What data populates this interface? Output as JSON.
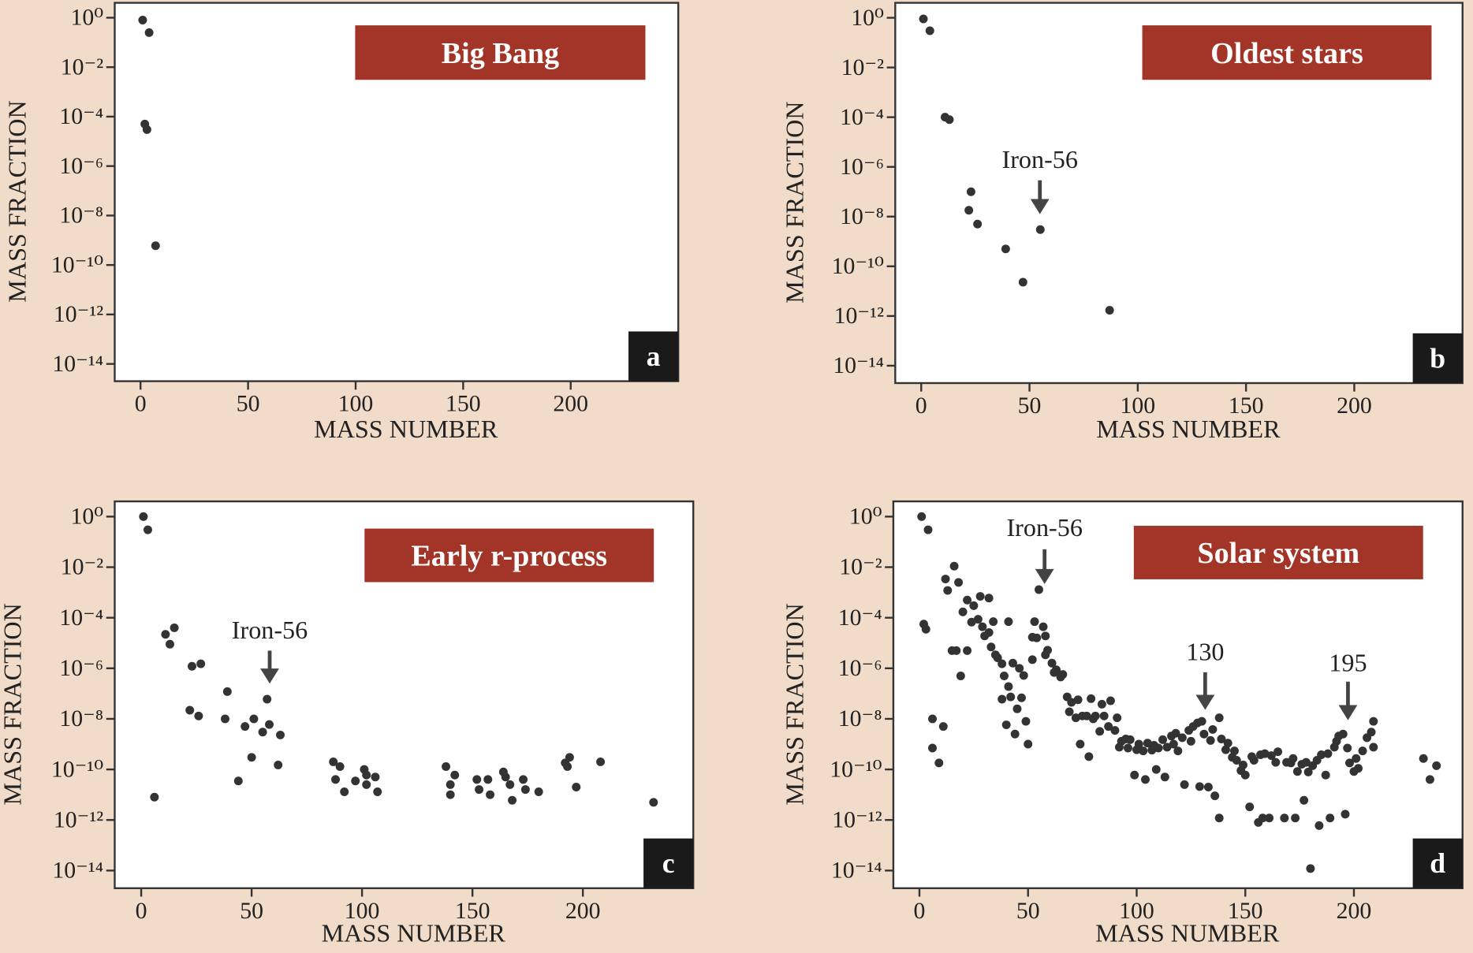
{
  "chart_data": [
    {
      "type": "scatter",
      "title": "Big Bang",
      "panel": "a",
      "x_label": "MASS NUMBER",
      "y_label": "MASS FRACTION",
      "yscale": "log",
      "color": "#333333",
      "xlim": [
        -12,
        250
      ],
      "ylim": [
        2e-15,
        4
      ],
      "xticks": [
        0,
        50,
        100,
        150,
        200
      ],
      "yticks": [
        {
          "value": 1,
          "label": "10⁰"
        },
        {
          "value": 0.01,
          "label": "10⁻²"
        },
        {
          "value": 0.0001,
          "label": "10⁻⁴"
        },
        {
          "value": 1e-06,
          "label": "10⁻⁶"
        },
        {
          "value": 1e-08,
          "label": "10⁻⁸"
        },
        {
          "value": 1e-10,
          "label": "10⁻¹⁰"
        },
        {
          "value": 1e-12,
          "label": "10⁻¹²"
        },
        {
          "value": 1e-14,
          "label": "10⁻¹⁴"
        }
      ],
      "annotations": [],
      "x": [
        1,
        4,
        2,
        3,
        7
      ],
      "values": [
        0.8,
        0.25,
        5e-05,
        3e-05,
        6e-10
      ]
    },
    {
      "type": "scatter",
      "title": "Oldest stars",
      "panel": "b",
      "x_label": "MASS NUMBER",
      "y_label": "MASS FRACTION",
      "yscale": "log",
      "color": "#333333",
      "xlim": [
        -12,
        250
      ],
      "ylim": [
        2e-15,
        4
      ],
      "xticks": [
        0,
        50,
        100,
        150,
        200
      ],
      "yticks": [
        {
          "value": 1,
          "label": "10⁰"
        },
        {
          "value": 0.01,
          "label": "10⁻²"
        },
        {
          "value": 0.0001,
          "label": "10⁻⁴"
        },
        {
          "value": 1e-06,
          "label": "10⁻⁶"
        },
        {
          "value": 1e-08,
          "label": "10⁻⁸"
        },
        {
          "value": 1e-10,
          "label": "10⁻¹⁰"
        },
        {
          "value": 1e-12,
          "label": "10⁻¹²"
        },
        {
          "value": 1e-14,
          "label": "10⁻¹⁴"
        }
      ],
      "annotations": [
        "Iron-56"
      ],
      "x": [
        1,
        4,
        11,
        13,
        23,
        22,
        26,
        55,
        39,
        47,
        87
      ],
      "values": [
        0.9,
        0.3,
        0.0001,
        8e-05,
        1e-07,
        1.8e-08,
        5e-09,
        3e-09,
        5e-10,
        2.3e-11,
        1.7e-12
      ]
    },
    {
      "type": "scatter",
      "title": "Early r-process",
      "panel": "c",
      "x_label": "MASS NUMBER",
      "y_label": "MASS FRACTION",
      "yscale": "log",
      "color": "#333333",
      "xlim": [
        -12,
        250
      ],
      "ylim": [
        2e-15,
        4
      ],
      "xticks": [
        0,
        50,
        100,
        150,
        200
      ],
      "yticks": [
        {
          "value": 1,
          "label": "10⁰"
        },
        {
          "value": 0.01,
          "label": "10⁻²"
        },
        {
          "value": 0.0001,
          "label": "10⁻⁴"
        },
        {
          "value": 1e-06,
          "label": "10⁻⁶"
        },
        {
          "value": 1e-08,
          "label": "10⁻⁸"
        },
        {
          "value": 1e-10,
          "label": "10⁻¹⁰"
        },
        {
          "value": 1e-12,
          "label": "10⁻¹²"
        },
        {
          "value": 1e-14,
          "label": "10⁻¹⁴"
        }
      ],
      "annotations": [
        "Iron-56"
      ],
      "x": [
        1,
        3,
        11,
        13,
        15,
        6,
        23,
        27,
        22,
        26,
        39,
        38,
        47,
        51,
        55,
        57,
        58,
        63,
        50,
        44,
        62,
        87,
        90,
        88,
        92,
        97,
        101,
        102,
        102,
        106,
        107,
        138,
        142,
        140,
        140,
        152,
        153,
        157,
        158,
        164,
        165,
        167,
        168,
        173,
        174,
        180,
        192,
        194,
        193,
        197,
        208,
        232
      ],
      "values": [
        1,
        0.3,
        2.2e-05,
        9e-06,
        4e-05,
        8e-12,
        1.2e-06,
        1.5e-06,
        2.2e-08,
        1.3e-08,
        1.2e-07,
        1e-08,
        5e-09,
        1e-08,
        3e-09,
        6e-08,
        6e-09,
        2.3e-09,
        3e-10,
        3.5e-11,
        1.5e-10,
        2e-10,
        1.3e-10,
        4e-11,
        1.3e-11,
        3.5e-11,
        1e-10,
        6e-11,
        2.5e-11,
        5e-11,
        1.3e-11,
        1.3e-10,
        6e-11,
        2.5e-11,
        1e-11,
        4e-11,
        1.6e-11,
        4e-11,
        1e-11,
        8e-11,
        5e-11,
        2.5e-11,
        6e-12,
        4e-11,
        1.6e-11,
        1.3e-11,
        1.8e-10,
        3e-10,
        1.3e-10,
        2e-11,
        2e-10,
        5e-12
      ]
    },
    {
      "type": "scatter",
      "title": "Solar system",
      "panel": "d",
      "x_label": "MASS NUMBER",
      "y_label": "MASS FRACTION",
      "yscale": "log",
      "color": "#333333",
      "xlim": [
        -12,
        250
      ],
      "ylim": [
        2e-15,
        4
      ],
      "xticks": [
        0,
        50,
        100,
        150,
        200
      ],
      "yticks": [
        {
          "value": 1,
          "label": "10⁰"
        },
        {
          "value": 0.01,
          "label": "10⁻²"
        },
        {
          "value": 0.0001,
          "label": "10⁻⁴"
        },
        {
          "value": 1e-06,
          "label": "10⁻⁶"
        },
        {
          "value": 1e-08,
          "label": "10⁻⁸"
        },
        {
          "value": 1e-10,
          "label": "10⁻¹⁰"
        },
        {
          "value": 1e-12,
          "label": "10⁻¹²"
        },
        {
          "value": 1e-14,
          "label": "10⁻¹⁴"
        }
      ],
      "annotations": [
        "Iron-56",
        "130",
        "195"
      ],
      "x": [
        1,
        4,
        2,
        3,
        6,
        6,
        11,
        9,
        12,
        16,
        13,
        18,
        15,
        17,
        19,
        20,
        22,
        24,
        25,
        22,
        27,
        28,
        29,
        30,
        32,
        32,
        33,
        34,
        35,
        36,
        38,
        38,
        40,
        39,
        41,
        41,
        42,
        43,
        44,
        45,
        46,
        47,
        48,
        49,
        50,
        52,
        52,
        53,
        54,
        55,
        57,
        58,
        58,
        59,
        61,
        62,
        63,
        65,
        66,
        68,
        69,
        70,
        72,
        73,
        74,
        75,
        77,
        78,
        79,
        80,
        81,
        83,
        84,
        85,
        87,
        88,
        90,
        91,
        92,
        93,
        95,
        96,
        97,
        99,
        100,
        101,
        103,
        104,
        105,
        107,
        108,
        109,
        110,
        112,
        113,
        114,
        116,
        117,
        118,
        119,
        121,
        122,
        124,
        125,
        126,
        128,
        129,
        130,
        131,
        133,
        134,
        135,
        136,
        138,
        138,
        139,
        141,
        142,
        144,
        145,
        146,
        148,
        149,
        150,
        152,
        153,
        154,
        156,
        157,
        158,
        159,
        161,
        162,
        164,
        165,
        168,
        169,
        171,
        172,
        173,
        174,
        176,
        177,
        178,
        179,
        180,
        181,
        183,
        184,
        185,
        187,
        188,
        189,
        191,
        192,
        193,
        195,
        196,
        197,
        198,
        200,
        201,
        202,
        204,
        206,
        208,
        209,
        209,
        232,
        235,
        238
      ],
      "values": [
        1,
        0.3,
        5.6e-05,
        3.5e-05,
        1e-08,
        7e-10,
        5e-09,
        1.8e-10,
        0.0034,
        0.011,
        0.0012,
        0.0025,
        5e-06,
        5e-06,
        5e-07,
        0.00017,
        0.0005,
        6.7e-05,
        0.0003,
        5e-06,
        8.7e-05,
        0.0007,
        4.4e-05,
        1.9e-05,
        0.0006,
        2.6e-05,
        7e-06,
        7e-05,
        3.4e-06,
        2.6e-06,
        1.5e-06,
        6e-08,
        5.8e-09,
        5e-07,
        7e-05,
        1.9e-07,
        7.4e-08,
        1.6e-06,
        2.5e-09,
        2.5e-08,
        1e-06,
        6.8e-08,
        5.2e-07,
        8e-09,
        1e-09,
        1.7e-05,
        2.2e-06,
        7e-05,
        1.6e-05,
        0.0013,
        4.4e-05,
        1.9e-05,
        3.4e-06,
        5.2e-06,
        1.6e-06,
        6.8e-07,
        8.7e-07,
        4.5e-07,
        5.7e-07,
        7.4e-08,
        1.9e-08,
        4.5e-08,
        1.1e-08,
        5.7e-08,
        1e-09,
        1.3e-08,
        1.3e-08,
        3.2e-10,
        6.3e-08,
        1e-08,
        1.3e-08,
        3.2e-09,
        3.8e-08,
        1.3e-08,
        5e-09,
        5.2e-08,
        3.5e-09,
        1.1e-08,
        7.6e-10,
        1.3e-09,
        1.6e-09,
        7e-10,
        1.5e-09,
        6e-11,
        6e-10,
        1e-09,
        5.4e-10,
        4e-11,
        1.1e-09,
        5.8e-10,
        9e-10,
        1e-10,
        7e-10,
        1.5e-09,
        5e-11,
        7.6e-10,
        2.1e-09,
        1e-09,
        2.7e-09,
        5.4e-10,
        1.8e-09,
        2.5e-11,
        3.5e-09,
        1.3e-09,
        5e-09,
        6.9e-09,
        2.1e-11,
        8e-09,
        2.5e-09,
        2e-11,
        1.4e-09,
        3.8e-09,
        9e-12,
        1.1e-08,
        1.2e-12,
        1.6e-09,
        6e-10,
        1.1e-09,
        3e-10,
        5.4e-10,
        2.3e-10,
        9e-11,
        1.5e-10,
        6e-11,
        3.3e-12,
        3.2e-10,
        2.3e-10,
        8e-13,
        3.8e-10,
        1.2e-12,
        4.2e-10,
        1.2e-12,
        3.5e-10,
        1.9e-10,
        5e-10,
        1.2e-12,
        1.9e-10,
        1.8e-10,
        2.7e-10,
        1.2e-12,
        8.3e-11,
        1.6e-10,
        6e-12,
        1.9e-10,
        7.9e-11,
        1.2e-14,
        1.4e-10,
        2.3e-10,
        6e-13,
        3.8e-10,
        6e-11,
        4.2e-10,
        1.2e-12,
        7.6e-10,
        1.3e-09,
        2.1e-09,
        2.5e-09,
        1.7e-12,
        7e-10,
        1.8e-10,
        8.3e-11,
        2.7e-10,
        1.1e-10,
        5.4e-10,
        1.8e-09,
        3e-09,
        8e-09,
        7.6e-10,
        2.7e-10,
        4e-11,
        1.4e-10
      ]
    }
  ]
}
